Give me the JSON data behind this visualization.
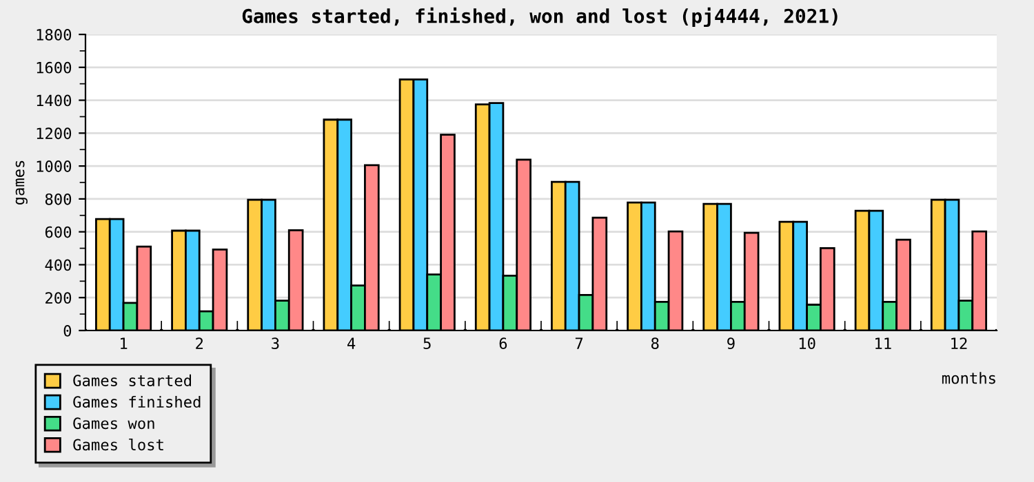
{
  "chart_data": {
    "type": "bar",
    "title": "Games started, finished, won and lost (pj4444, 2021)",
    "xlabel": "months",
    "ylabel": "games",
    "categories": [
      "1",
      "2",
      "3",
      "4",
      "5",
      "6",
      "7",
      "8",
      "9",
      "10",
      "11",
      "12"
    ],
    "series": [
      {
        "name": "Games started",
        "color": "#ffcc44",
        "values": [
          678,
          607,
          795,
          1282,
          1526,
          1375,
          904,
          778,
          770,
          661,
          728,
          795
        ]
      },
      {
        "name": "Games finished",
        "color": "#44ccff",
        "values": [
          678,
          607,
          795,
          1282,
          1526,
          1383,
          904,
          778,
          770,
          661,
          728,
          795
        ]
      },
      {
        "name": "Games won",
        "color": "#44dd88",
        "values": [
          168,
          117,
          182,
          274,
          341,
          333,
          216,
          174,
          174,
          157,
          174,
          182
        ]
      },
      {
        "name": "Games lost",
        "color": "#ff8888",
        "values": [
          510,
          492,
          610,
          1005,
          1190,
          1039,
          686,
          602,
          594,
          501,
          552,
          602
        ]
      }
    ],
    "ylim": [
      0,
      1800
    ],
    "yticks": [
      0,
      200,
      400,
      600,
      800,
      1000,
      1200,
      1400,
      1600,
      1800
    ],
    "grid": "y",
    "legend": "bottom left"
  }
}
